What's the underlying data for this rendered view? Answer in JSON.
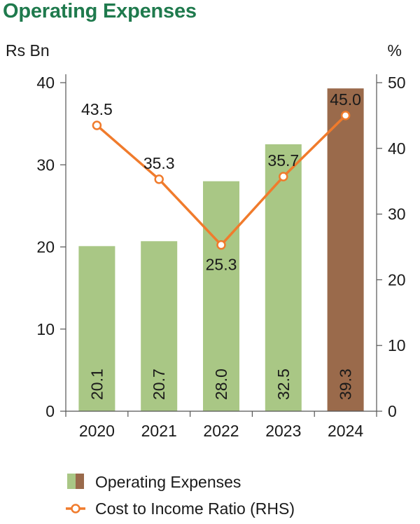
{
  "chart_data": {
    "type": "bar",
    "title": "Operating Expenses",
    "categories": [
      "2020",
      "2021",
      "2022",
      "2023",
      "2024"
    ],
    "y_left_unit": "Rs Bn",
    "y_right_unit": "%",
    "ylim_left": [
      0,
      40
    ],
    "ylim_right": [
      0,
      50
    ],
    "y_left_ticks": [
      0,
      10,
      20,
      30,
      40
    ],
    "y_right_ticks": [
      0,
      10,
      20,
      30,
      40,
      50
    ],
    "grid": false,
    "legend_position": "bottom",
    "series": [
      {
        "name": "Operating Expenses",
        "kind": "bar",
        "axis": "left",
        "values": [
          20.1,
          20.7,
          28.0,
          32.5,
          39.3
        ],
        "value_labels": [
          "20.1",
          "20.7",
          "28.0",
          "32.5",
          "39.3"
        ],
        "colors": [
          "#a9c785",
          "#a9c785",
          "#a9c785",
          "#a9c785",
          "#9a6a4b"
        ]
      },
      {
        "name": "Cost to Income Ratio (RHS)",
        "kind": "line",
        "axis": "right",
        "values": [
          43.5,
          35.3,
          25.3,
          35.7,
          45.0
        ],
        "value_labels": [
          "43.5",
          "35.3",
          "25.3",
          "35.7",
          "45.0"
        ],
        "color": "#f07b2c"
      }
    ]
  },
  "colors": {
    "title": "#1f7a4d",
    "bar_green": "#a9c785",
    "bar_brown": "#9a6a4b",
    "line_orange": "#f07b2c",
    "axis": "#555555"
  }
}
